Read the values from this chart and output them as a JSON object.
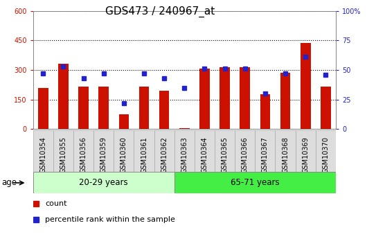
{
  "title": "GDS473 / 240967_at",
  "samples": [
    "GSM10354",
    "GSM10355",
    "GSM10356",
    "GSM10359",
    "GSM10360",
    "GSM10361",
    "GSM10362",
    "GSM10363",
    "GSM10364",
    "GSM10365",
    "GSM10366",
    "GSM10367",
    "GSM10368",
    "GSM10369",
    "GSM10370"
  ],
  "counts": [
    210,
    330,
    215,
    215,
    75,
    215,
    195,
    5,
    305,
    315,
    315,
    175,
    285,
    435,
    215
  ],
  "percentiles": [
    47,
    53,
    43,
    47,
    22,
    47,
    43,
    35,
    51,
    51,
    51,
    30,
    47,
    61,
    46
  ],
  "group1_label": "20-29 years",
  "group2_label": "65-71 years",
  "group1_count": 7,
  "group2_count": 8,
  "age_label": "age",
  "ylim_left": [
    0,
    600
  ],
  "ylim_right": [
    0,
    100
  ],
  "yticks_left": [
    0,
    150,
    300,
    450,
    600
  ],
  "yticks_right": [
    0,
    25,
    50,
    75,
    100
  ],
  "bar_color": "#cc1100",
  "square_color": "#2222cc",
  "group1_bg": "#ccffcc",
  "group2_bg": "#44ee44",
  "xticklabel_bg": "#dddddd",
  "plot_bg": "#ffffff",
  "legend_count": "count",
  "legend_pct": "percentile rank within the sample",
  "title_fontsize": 11,
  "tick_fontsize": 7,
  "label_fontsize": 9
}
